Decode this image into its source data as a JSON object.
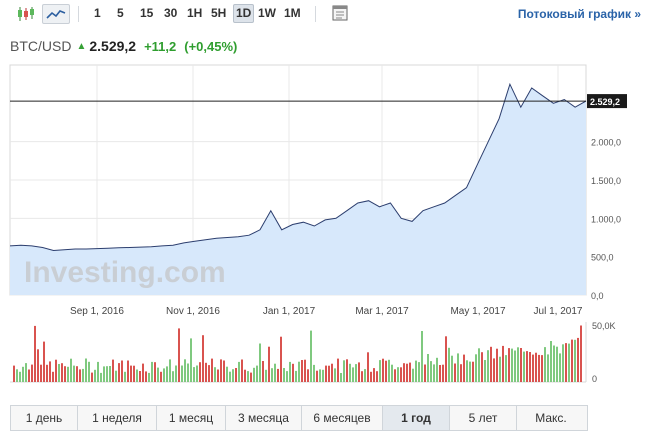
{
  "toolbar": {
    "timeframes": [
      "1",
      "5",
      "15",
      "30",
      "1H",
      "5H",
      "1D",
      "1W",
      "1M"
    ],
    "active_timeframe": "1D",
    "stream_link": "Потоковый график »"
  },
  "quote": {
    "symbol": "BTC/USD",
    "price": "2.529,2",
    "change": "+11,2",
    "change_pct": "(+0,45%)"
  },
  "watermark": "Investing.com",
  "chart_data": {
    "type": "area",
    "title": "",
    "xlabel": "",
    "ylabel": "",
    "ylim": [
      0,
      3000
    ],
    "x_tick_labels": [
      "Sep 1, 2016",
      "Nov 1, 2016",
      "Jan 1, 2017",
      "Mar 1, 2017",
      "May 1, 2017",
      "Jul 1, 2017"
    ],
    "y_tick_labels": [
      "0,0",
      "500,0",
      "1.000,0",
      "1.500,0",
      "2.000,0"
    ],
    "last_price_label": "2.529,2",
    "last_price": 2529.2,
    "series": [
      {
        "values": [
          640,
          650,
          640,
          620,
          580,
          590,
          600,
          600,
          605,
          610,
          615,
          620,
          625,
          630,
          640,
          650,
          680,
          700,
          720,
          740,
          750,
          760,
          780,
          850,
          1100,
          850,
          920,
          950,
          900,
          980,
          1000,
          1100,
          1200,
          1230,
          1150,
          1200,
          1000,
          960,
          1100,
          1150,
          1200,
          1300,
          1400,
          1700,
          2000,
          2300,
          2750,
          2450,
          2700,
          2600,
          2500,
          2550,
          2450,
          2529
        ]
      }
    ],
    "volume_axis_labels": [
      "50,0K",
      "0"
    ],
    "colors": {
      "line": "#2c3e6e",
      "area": "#d7e8fb",
      "up": "#7fc97f",
      "down": "#d9534f",
      "grid": "#e8e8e8"
    }
  },
  "range_buttons": [
    "1 день",
    "1 неделя",
    "1 месяц",
    "3 месяца",
    "6 месяцев",
    "1 год",
    "5 лет",
    "Макс."
  ],
  "active_range": "1 год"
}
